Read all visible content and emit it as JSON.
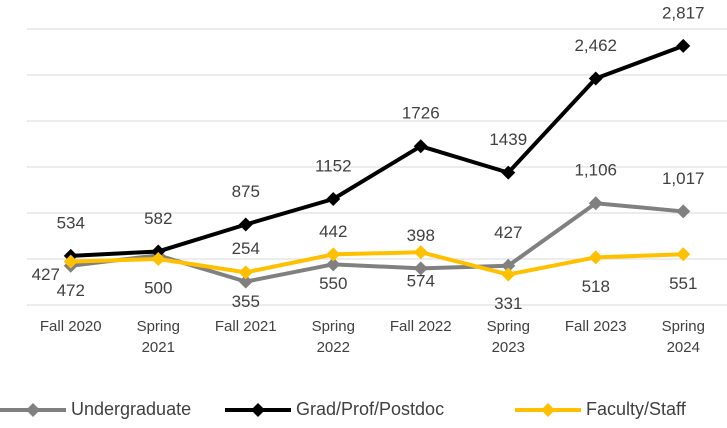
{
  "chart_data": {
    "type": "line",
    "categories": [
      "Fall 2020",
      "Spring 2021",
      "Fall 2021",
      "Spring 2022",
      "Fall 2022",
      "Spring 2023",
      "Fall 2023",
      "Spring 2024"
    ],
    "series": [
      {
        "name": "Undergraduate",
        "color": "#808080",
        "values": [
          427,
          540,
          254,
          442,
          398,
          427,
          1106,
          1017
        ],
        "value_labels": [
          "427",
          null,
          "254",
          "442",
          "398",
          "427",
          "1,106",
          "1,017"
        ]
      },
      {
        "name": "Grad/Prof/Postdoc",
        "color": "#000000",
        "values": [
          534,
          582,
          875,
          1152,
          1726,
          1439,
          2462,
          2817
        ],
        "value_labels": [
          "534",
          "582",
          "875",
          "1152",
          "1726",
          "1439",
          "2,462",
          "2,817"
        ]
      },
      {
        "name": "Faculty/Staff",
        "color": "#ffc000",
        "values": [
          472,
          500,
          355,
          550,
          574,
          331,
          518,
          551
        ]
      }
    ],
    "ylim": [
      0,
      3000
    ],
    "yticks": [
      0,
      500,
      1000,
      1500,
      2000,
      2500,
      3000
    ],
    "grid": true
  }
}
